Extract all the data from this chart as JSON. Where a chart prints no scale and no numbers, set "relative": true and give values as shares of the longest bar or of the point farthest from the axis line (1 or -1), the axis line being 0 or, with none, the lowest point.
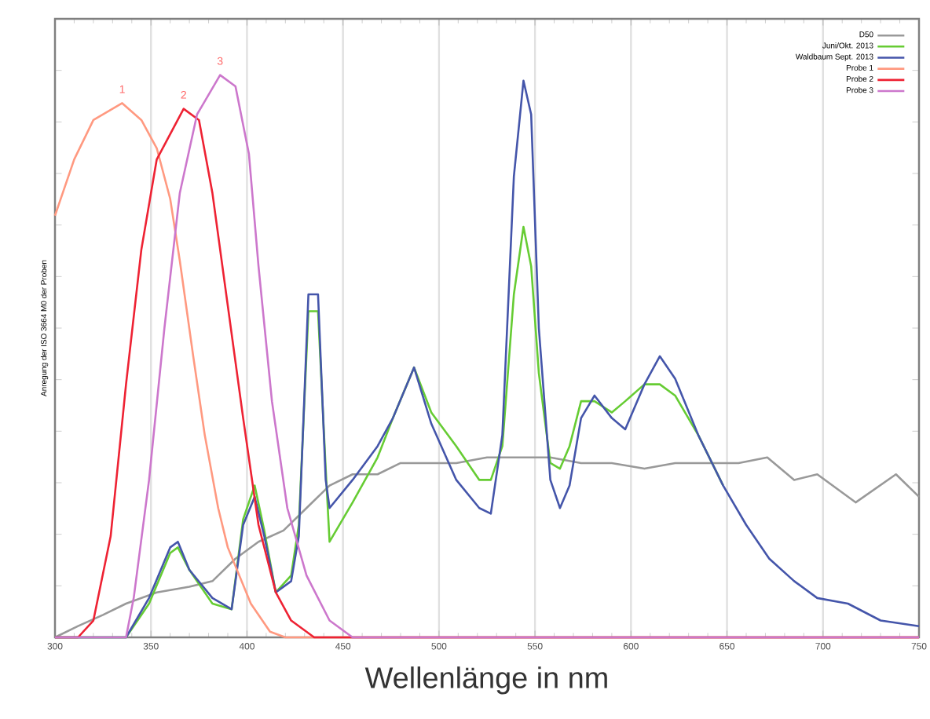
{
  "chart_data": {
    "type": "line",
    "relative": true,
    "xlabel": "Wellenlänge in nm",
    "ylabel": "Anregung der ISO 3664 M0 der Proben",
    "xlim": [
      300,
      750
    ],
    "xticks": [
      300,
      350,
      400,
      450,
      500,
      550,
      600,
      650,
      700,
      750
    ],
    "grid": "x",
    "legend": "top right",
    "annotations": [
      "1",
      "2",
      "3"
    ],
    "series": [
      {
        "name": "D50",
        "color": "#999999",
        "x": [
          300,
          312,
          325,
          337,
          353,
          370,
          382,
          394,
          406,
          419,
          431,
          443,
          455,
          468,
          480,
          492,
          509,
          525,
          541,
          558,
          574,
          590,
          607,
          623,
          640,
          656,
          671,
          685,
          697,
          717,
          738,
          750
        ],
        "values": [
          0,
          0.02,
          0.04,
          0.06,
          0.08,
          0.09,
          0.1,
          0.14,
          0.17,
          0.19,
          0.23,
          0.27,
          0.29,
          0.29,
          0.31,
          0.31,
          0.31,
          0.32,
          0.32,
          0.32,
          0.31,
          0.31,
          0.3,
          0.31,
          0.31,
          0.31,
          0.32,
          0.28,
          0.29,
          0.24,
          0.29,
          0.25
        ]
      },
      {
        "name": "Juni/Okt. 2013",
        "color": "#66cc33",
        "x": [
          300,
          337,
          349,
          360,
          364,
          370,
          382,
          392,
          398,
          404,
          409,
          415,
          423,
          427,
          432,
          437,
          441,
          443,
          455,
          468,
          476,
          487,
          496,
          509,
          521,
          527,
          533,
          539,
          544,
          548,
          552,
          558,
          563,
          568,
          574,
          581,
          590,
          597,
          607,
          615,
          623,
          635,
          648
        ],
        "values": [
          0,
          0,
          0.06,
          0.15,
          0.16,
          0.12,
          0.06,
          0.05,
          0.21,
          0.27,
          0.19,
          0.08,
          0.11,
          0.2,
          0.58,
          0.58,
          0.3,
          0.17,
          0.24,
          0.32,
          0.39,
          0.48,
          0.4,
          0.34,
          0.28,
          0.28,
          0.34,
          0.61,
          0.73,
          0.66,
          0.47,
          0.31,
          0.3,
          0.34,
          0.42,
          0.42,
          0.4,
          0.42,
          0.45,
          0.45,
          0.43,
          0.36,
          0.27
        ]
      },
      {
        "name": "Waldbaum Sept. 2013",
        "color": "#4455aa",
        "x": [
          300,
          337,
          349,
          360,
          364,
          370,
          382,
          392,
          398,
          404,
          409,
          415,
          423,
          427,
          432,
          437,
          441,
          443,
          455,
          468,
          476,
          487,
          496,
          509,
          521,
          527,
          533,
          539,
          544,
          548,
          552,
          558,
          563,
          568,
          574,
          581,
          590,
          597,
          607,
          615,
          623,
          635,
          648,
          660,
          672,
          685,
          697,
          713,
          730,
          750
        ],
        "values": [
          0,
          0,
          0.07,
          0.16,
          0.17,
          0.12,
          0.07,
          0.05,
          0.2,
          0.25,
          0.18,
          0.08,
          0.1,
          0.18,
          0.61,
          0.61,
          0.28,
          0.23,
          0.28,
          0.34,
          0.39,
          0.48,
          0.38,
          0.28,
          0.23,
          0.22,
          0.36,
          0.82,
          0.99,
          0.93,
          0.55,
          0.28,
          0.23,
          0.27,
          0.39,
          0.43,
          0.39,
          0.37,
          0.45,
          0.5,
          0.46,
          0.36,
          0.27,
          0.2,
          0.14,
          0.1,
          0.07,
          0.06,
          0.03,
          0.02
        ]
      },
      {
        "name": "Probe 1",
        "color": "#ff9980",
        "x": [
          300,
          310,
          320,
          335,
          345,
          353,
          360,
          365,
          372,
          378,
          385,
          390,
          402,
          412,
          420,
          750
        ],
        "values": [
          0.75,
          0.85,
          0.92,
          0.95,
          0.92,
          0.87,
          0.78,
          0.67,
          0.5,
          0.36,
          0.23,
          0.16,
          0.06,
          0.01,
          0,
          0
        ]
      },
      {
        "name": "Probe 2",
        "color": "#ee2233",
        "x": [
          300,
          312,
          320,
          329,
          337,
          345,
          353,
          367,
          375,
          382,
          390,
          398,
          406,
          415,
          423,
          435,
          750
        ],
        "values": [
          0,
          0,
          0.03,
          0.18,
          0.45,
          0.69,
          0.85,
          0.94,
          0.92,
          0.79,
          0.59,
          0.39,
          0.2,
          0.08,
          0.03,
          0,
          0
        ]
      },
      {
        "name": "Probe 3",
        "color": "#cc77cc",
        "x": [
          300,
          337,
          341,
          349,
          357,
          365,
          374,
          386,
          394,
          401,
          406,
          413,
          421,
          431,
          443,
          455,
          750
        ],
        "values": [
          0,
          0,
          0.07,
          0.28,
          0.55,
          0.79,
          0.93,
          1.0,
          0.98,
          0.86,
          0.66,
          0.42,
          0.23,
          0.11,
          0.03,
          0,
          0
        ]
      }
    ]
  }
}
